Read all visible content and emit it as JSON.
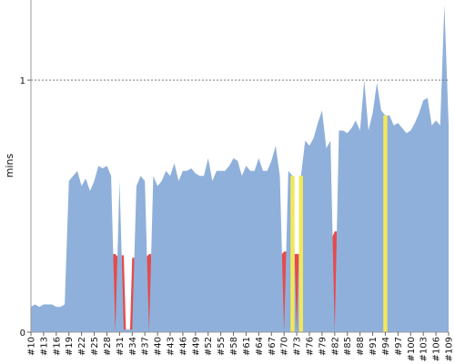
{
  "chart_data": {
    "type": "area",
    "ylabel": "mins",
    "xlabel": "",
    "title": "",
    "ylim": [
      0,
      1.3
    ],
    "y_ticks": [
      0,
      1
    ],
    "x_start": 10,
    "x_end": 109,
    "x_tick_labels": [
      "#10",
      "#13",
      "#16",
      "#19",
      "#22",
      "#25",
      "#28",
      "#31",
      "#34",
      "#37",
      "#40",
      "#43",
      "#46",
      "#49",
      "#52",
      "#55",
      "#58",
      "#61",
      "#64",
      "#67",
      "#70",
      "#73",
      "#76",
      "#79",
      "#82",
      "#85",
      "#88",
      "#91",
      "#94",
      "#97",
      "#100",
      "#103",
      "#106",
      "#109"
    ],
    "reference_line": {
      "y": 1,
      "style": "dashed"
    },
    "series_color": "#8fb0da",
    "failure_color": "#e64a4a",
    "unstable_color": "#f2e85a",
    "series": [
      {
        "values": [
          0.1,
          0.11,
          0.1,
          0.11,
          0.11,
          0.11,
          0.1,
          0.1,
          0.11,
          0.6,
          0.62,
          0.64,
          0.58,
          0.61,
          0.56,
          0.6,
          0.66,
          0.65,
          0.66,
          0.62,
          0,
          0.6,
          0.01,
          0.01,
          0.01,
          0.58,
          0.62,
          0.6,
          0,
          0.62,
          0.58,
          0.6,
          0.64,
          0.62,
          0.67,
          0.6,
          0.64,
          0.64,
          0.65,
          0.63,
          0.62,
          0.62,
          0.69,
          0.6,
          0.64,
          0.64,
          0.64,
          0.66,
          0.69,
          0.68,
          0.62,
          0.66,
          0.64,
          0.64,
          0.69,
          0.64,
          0.64,
          0.68,
          0.74,
          0.62,
          0,
          0.64,
          0.62,
          0,
          0.62,
          0.76,
          0.74,
          0.77,
          0.83,
          0.88,
          0.73,
          0.76,
          0,
          0.8,
          0.8,
          0.79,
          0.81,
          0.84,
          0.8,
          1.0,
          0.8,
          0.87,
          0.99,
          0.88,
          0.86,
          0.86,
          0.82,
          0.83,
          0.81,
          0.79,
          0.8,
          0.83,
          0.87,
          0.92,
          0.93,
          0.82,
          0.84,
          0.82,
          1.3,
          0.82
        ]
      }
    ],
    "failed_builds": [
      "#30",
      "#32",
      "#33",
      "#34",
      "#38",
      "#70",
      "#73",
      "#82"
    ],
    "unstable_builds": [
      "#72",
      "#74",
      "#94"
    ]
  }
}
